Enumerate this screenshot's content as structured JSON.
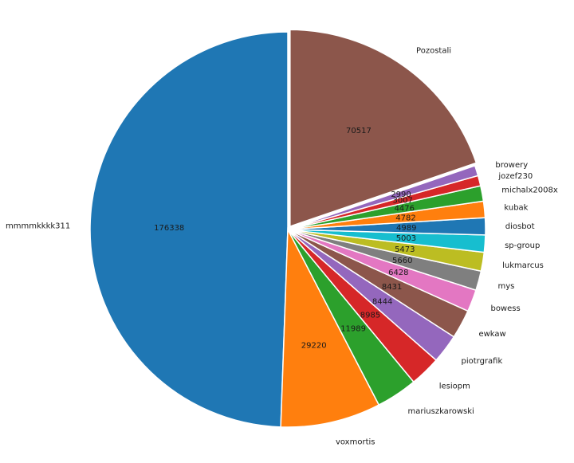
{
  "chart_data": {
    "type": "pie",
    "start_angle_deg": 90,
    "direction": "counterclockwise",
    "explode": [
      "Pozostali"
    ],
    "slices": [
      {
        "label": "mmmmkkkk311",
        "value": 176338,
        "color": "#1f77b4"
      },
      {
        "label": "voxmortis",
        "value": 29220,
        "color": "#ff7f0e"
      },
      {
        "label": "mariuszkarowski",
        "value": 11989,
        "color": "#2ca02c"
      },
      {
        "label": "lesiopm",
        "value": 8985,
        "color": "#d62728"
      },
      {
        "label": "piotrgrafik",
        "value": 8444,
        "color": "#9467bd"
      },
      {
        "label": "ewkaw",
        "value": 8431,
        "color": "#8c564b"
      },
      {
        "label": "bowess",
        "value": 6428,
        "color": "#e377c2"
      },
      {
        "label": "mys",
        "value": 5660,
        "color": "#7f7f7f"
      },
      {
        "label": "lukmarcus",
        "value": 5473,
        "color": "#bcbd22"
      },
      {
        "label": "sp-group",
        "value": 5003,
        "color": "#17becf"
      },
      {
        "label": "diosbot",
        "value": 4989,
        "color": "#1f77b4"
      },
      {
        "label": "kubak",
        "value": 4782,
        "color": "#ff7f0e"
      },
      {
        "label": "michalx2008x",
        "value": 4476,
        "color": "#2ca02c"
      },
      {
        "label": "jozef230",
        "value": 3007,
        "color": "#d62728"
      },
      {
        "label": "browery",
        "value": 2990,
        "color": "#9467bd"
      },
      {
        "label": "Pozostali",
        "value": 70517,
        "color": "#8c564b"
      }
    ]
  }
}
